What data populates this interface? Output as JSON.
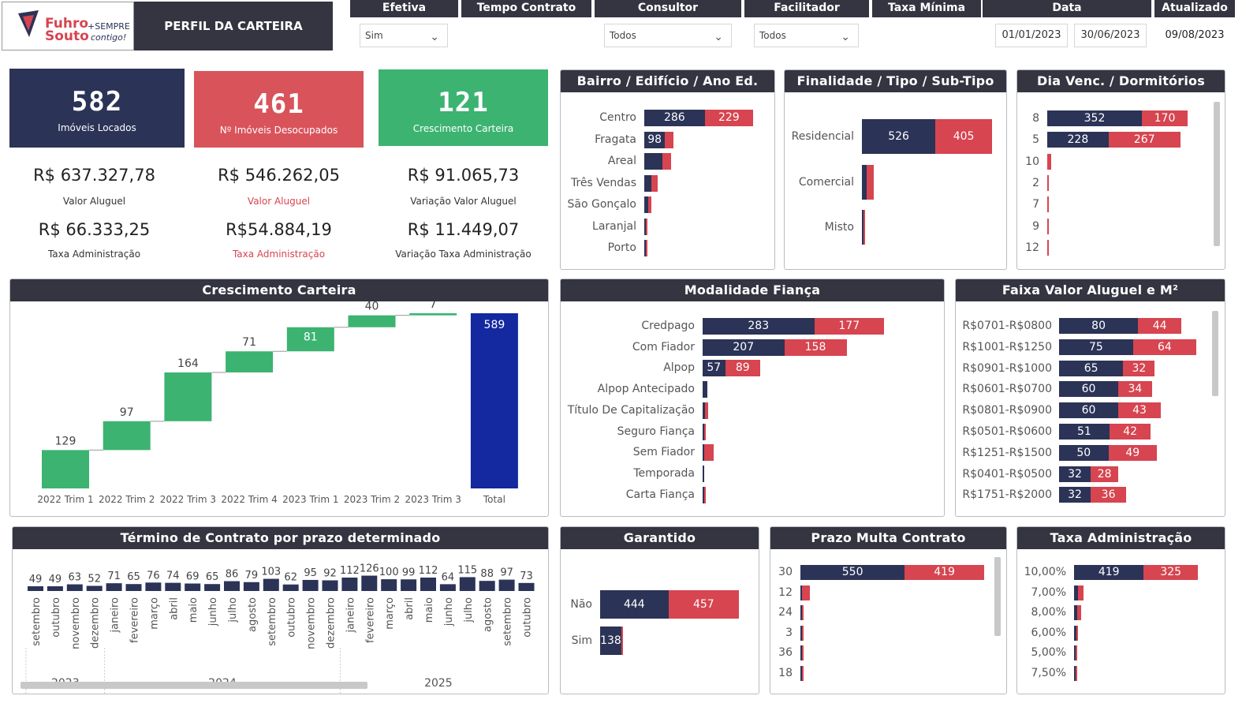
{
  "logo": {
    "brand": "Fuhro Souto",
    "tagline": "+SEMPRE contigo!"
  },
  "header": {
    "title": "PERFIL DA CARTEIRA"
  },
  "filters": {
    "efetiva": {
      "label": "Efetiva",
      "value": "Sim"
    },
    "tempo": {
      "label": "Tempo Contrato"
    },
    "consultor": {
      "label": "Consultor",
      "value": "Todos"
    },
    "facilitador": {
      "label": "Facilitador",
      "value": "Todos"
    },
    "taxa": {
      "label": "Taxa Mínima"
    },
    "data": {
      "label": "Data",
      "start": "01/01/2023",
      "end": "30/06/2023"
    },
    "atualizado": {
      "label": "Atualizado",
      "value": "09/08/2023"
    }
  },
  "kpis": [
    {
      "value": "582",
      "label": "Imóveis Locados",
      "color": "#2b3357",
      "money1": "R$ 637.327,78",
      "money1_label": "Valor Aluguel",
      "money2": "R$ 66.333,25",
      "money2_label": "Taxa Administração"
    },
    {
      "value": "461",
      "label": "Nº Imóveis Desocupados",
      "color": "#d9535b",
      "money1": "R$ 546.262,05",
      "money1_label": "Valor Aluguel",
      "money2": "R$54.884,19",
      "money2_label": "Taxa Administração"
    },
    {
      "value": "121",
      "label": "Crescimento Carteira",
      "color": "#3cb371",
      "money1": "R$ 91.065,73",
      "money1_label": "Variação Valor Aluguel",
      "money2": "R$ 11.449,07",
      "money2_label": "Variação Taxa Administração"
    }
  ],
  "colors": {
    "navy": "#2b3357",
    "red": "#d64550",
    "green": "#3cb371",
    "total": "#1428a0",
    "header": "#343541"
  },
  "bairro": {
    "title": "Bairro / Edifício / Ano Ed.",
    "rows": [
      {
        "cat": "Centro",
        "a": 286,
        "b": 229
      },
      {
        "cat": "Fragata",
        "a": 98,
        "b": 40
      },
      {
        "cat": "Areal",
        "a": 87,
        "b": 40
      },
      {
        "cat": "Três Vendas",
        "a": 35,
        "b": 30
      },
      {
        "cat": "São Gonçalo",
        "a": 20,
        "b": 15
      },
      {
        "cat": "Laranjal",
        "a": 5,
        "b": 8
      },
      {
        "cat": "Porto",
        "a": 1,
        "b": 1
      }
    ]
  },
  "finalidade": {
    "title": "Finalidade / Tipo / Sub-Tipo",
    "rows": [
      {
        "cat": "Residencial",
        "a": 526,
        "b": 405
      },
      {
        "cat": "Comercial",
        "a": 35,
        "b": 50
      },
      {
        "cat": "Misto",
        "a": 6,
        "b": 4
      }
    ]
  },
  "diavenc": {
    "title": "Dia Venc. / Dormitórios",
    "rows": [
      {
        "cat": "8",
        "a": 352,
        "b": 170
      },
      {
        "cat": "5",
        "a": 228,
        "b": 267
      },
      {
        "cat": "10",
        "a": 0,
        "b": 15
      },
      {
        "cat": "2",
        "a": 0,
        "b": 2
      },
      {
        "cat": "7",
        "a": 0,
        "b": 2
      },
      {
        "cat": "9",
        "a": 0,
        "b": 2
      },
      {
        "cat": "12",
        "a": 0,
        "b": 2
      }
    ]
  },
  "crescimento": {
    "title": "Crescimento Carteira"
  },
  "chart_data": [
    {
      "type": "bar",
      "subtype": "waterfall",
      "title": "Crescimento Carteira",
      "categories": [
        "2022 Trim 1",
        "2022 Trim 2",
        "2022 Trim 3",
        "2022 Trim 4",
        "2023 Trim 1",
        "2023 Trim 2",
        "2023 Trim 3",
        "Total"
      ],
      "values": [
        129,
        97,
        164,
        71,
        81,
        40,
        7,
        589
      ]
    },
    {
      "type": "bar",
      "title": "Término de Contrato por prazo determinado",
      "categories": [
        "setembro",
        "outubro",
        "novembro",
        "dezembro",
        "janeiro",
        "fevereiro",
        "março",
        "abril",
        "maio",
        "junho",
        "julho",
        "agosto",
        "setembro",
        "outubro",
        "novembro",
        "dezembro",
        "janeiro",
        "fevereiro",
        "março",
        "abril",
        "maio",
        "junho",
        "julho",
        "agosto",
        "setembro",
        "outubro"
      ],
      "years": [
        {
          "label": "2023",
          "count": 4
        },
        {
          "label": "2024",
          "count": 12
        },
        {
          "label": "2025",
          "count": 10
        }
      ],
      "values": [
        49,
        49,
        63,
        52,
        71,
        65,
        76,
        74,
        69,
        65,
        86,
        79,
        103,
        62,
        95,
        92,
        112,
        126,
        100,
        99,
        112,
        64,
        115,
        88,
        97,
        73
      ]
    }
  ],
  "termino": {
    "title": "Término de Contrato por prazo determinado"
  },
  "modalidade": {
    "title": "Modalidade Fiança",
    "rows": [
      {
        "cat": "Credpago",
        "a": 283,
        "b": 177
      },
      {
        "cat": "Com Fiador",
        "a": 207,
        "b": 158
      },
      {
        "cat": "Alpop",
        "a": 57,
        "b": 89
      },
      {
        "cat": "Alpop Antecipado",
        "a": 12,
        "b": 0
      },
      {
        "cat": "Título De Capitalização",
        "a": 6,
        "b": 8
      },
      {
        "cat": "Seguro Fiança",
        "a": 4,
        "b": 4
      },
      {
        "cat": "Sem Fiador",
        "a": 3,
        "b": 24
      },
      {
        "cat": "Temporada",
        "a": 4,
        "b": 0
      },
      {
        "cat": "Carta Fiança",
        "a": 2,
        "b": 4
      }
    ]
  },
  "faixa": {
    "title": "Faixa Valor Aluguel e M²",
    "rows": [
      {
        "cat": "R$0701-R$0800",
        "a": 80,
        "b": 44
      },
      {
        "cat": "R$1001-R$1250",
        "a": 75,
        "b": 64
      },
      {
        "cat": "R$0901-R$1000",
        "a": 65,
        "b": 32
      },
      {
        "cat": "R$0601-R$0700",
        "a": 60,
        "b": 34
      },
      {
        "cat": "R$0801-R$0900",
        "a": 60,
        "b": 43
      },
      {
        "cat": "R$0501-R$0600",
        "a": 51,
        "b": 42
      },
      {
        "cat": "R$1251-R$1500",
        "a": 50,
        "b": 49
      },
      {
        "cat": "R$0401-R$0500",
        "a": 32,
        "b": 28
      },
      {
        "cat": "R$1751-R$2000",
        "a": 32,
        "b": 36
      }
    ]
  },
  "garantido": {
    "title": "Garantido",
    "rows": [
      {
        "cat": "Não",
        "a": 444,
        "b": 457
      },
      {
        "cat": "Sim",
        "a": 138,
        "b": 4
      }
    ]
  },
  "prazo": {
    "title": "Prazo Multa Contrato",
    "rows": [
      {
        "cat": "30",
        "a": 550,
        "b": 419
      },
      {
        "cat": "12",
        "a": 10,
        "b": 40
      },
      {
        "cat": "24",
        "a": 4,
        "b": 4
      },
      {
        "cat": "3",
        "a": 3,
        "b": 2
      },
      {
        "cat": "36",
        "a": 3,
        "b": 2
      },
      {
        "cat": "18",
        "a": 3,
        "b": 2
      }
    ]
  },
  "taxaadm": {
    "title": "Taxa Administração",
    "rows": [
      {
        "cat": "10,00%",
        "a": 419,
        "b": 325
      },
      {
        "cat": "7,00%",
        "a": 25,
        "b": 30
      },
      {
        "cat": "8,00%",
        "a": 20,
        "b": 24
      },
      {
        "cat": "6,00%",
        "a": 12,
        "b": 12
      },
      {
        "cat": "5,00%",
        "a": 10,
        "b": 10
      },
      {
        "cat": "7,50%",
        "a": 4,
        "b": 6
      }
    ]
  }
}
